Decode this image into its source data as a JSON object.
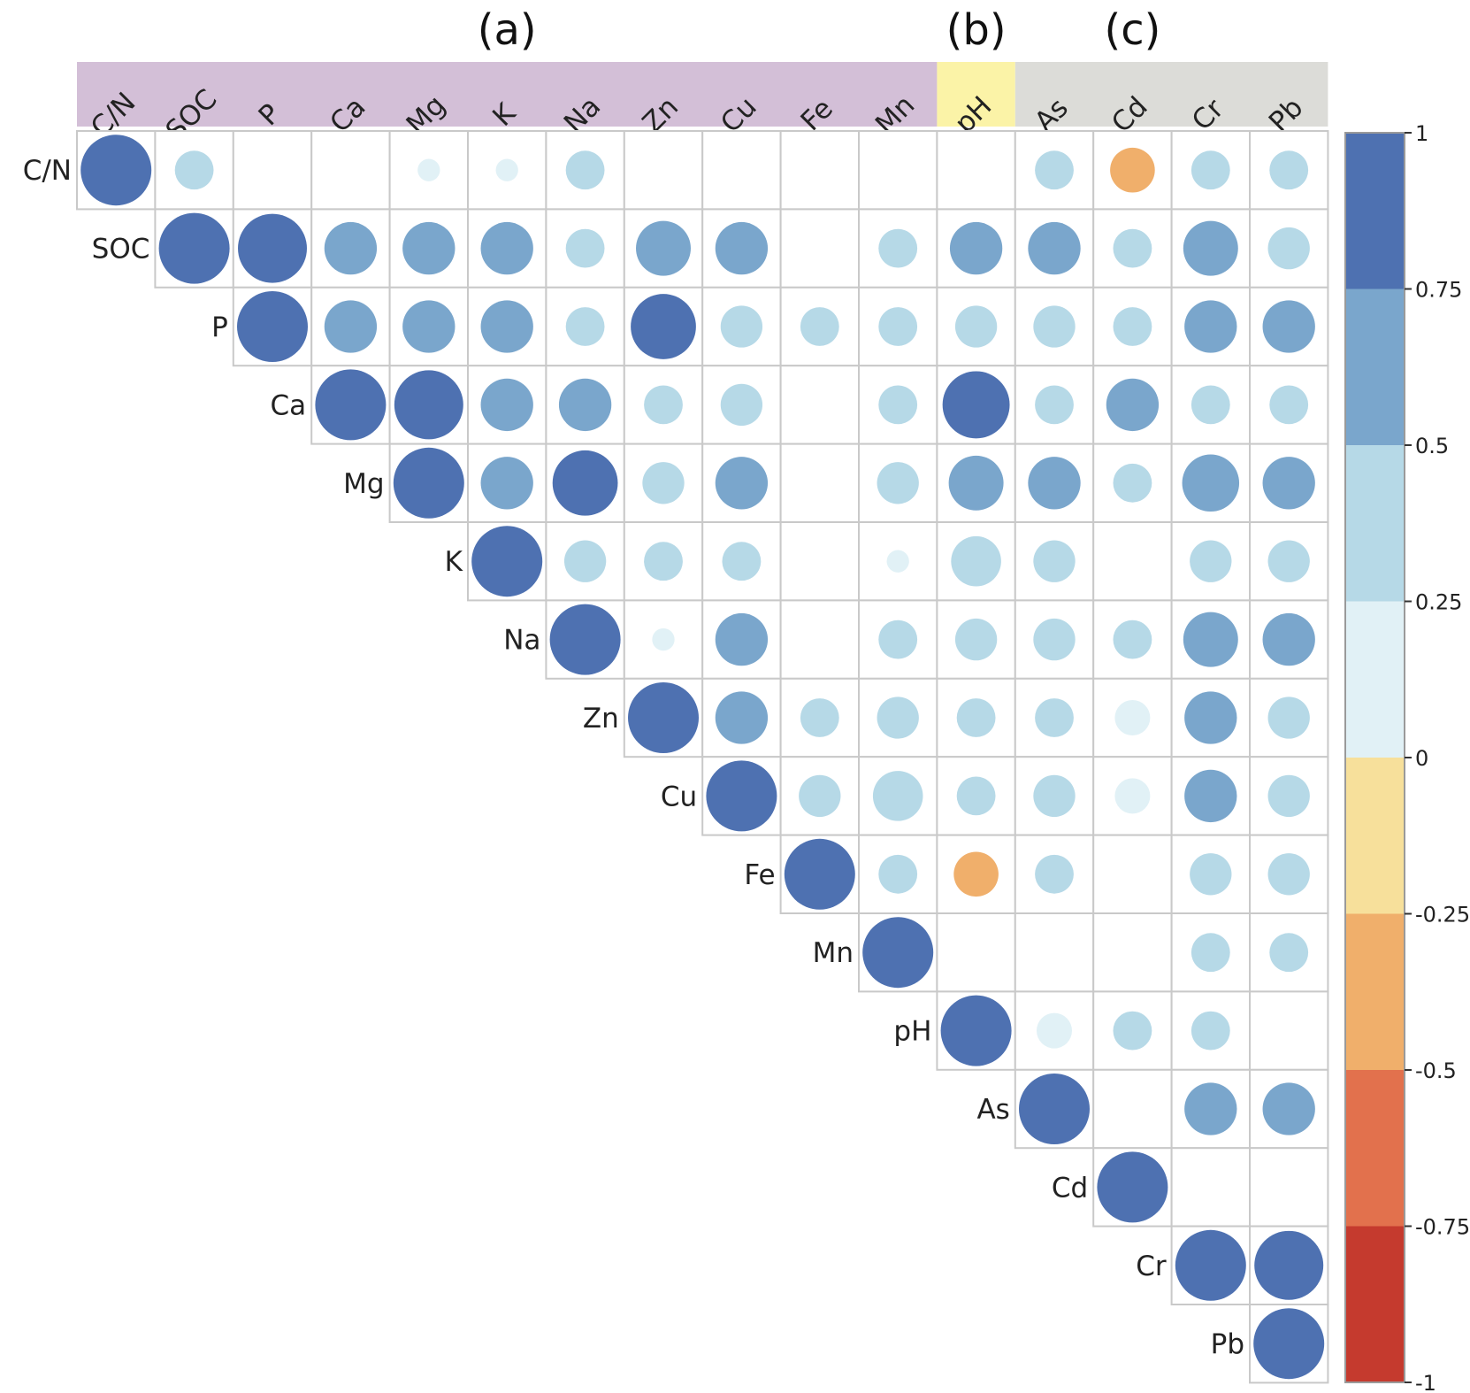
{
  "chart_data": {
    "type": "heatmap",
    "subtype": "correlation-upper-triangle-circles",
    "variables": [
      "C/N",
      "SOC",
      "P",
      "Ca",
      "Mg",
      "K",
      "Na",
      "Zn",
      "Cu",
      "Fe",
      "Mn",
      "pH",
      "As",
      "Cd",
      "Cr",
      "Pb"
    ],
    "groups": [
      {
        "label": "(a)",
        "color": "#d3bfd7",
        "members": [
          "C/N",
          "SOC",
          "P",
          "Ca",
          "Mg",
          "K",
          "Na",
          "Zn",
          "Cu",
          "Fe",
          "Mn"
        ]
      },
      {
        "label": "(b)",
        "color": "#fbf3a7",
        "members": [
          "pH"
        ]
      },
      {
        "label": "(c)",
        "color": "#dcdcd8",
        "members": [
          "As",
          "Cd",
          "Cr",
          "Pb"
        ]
      }
    ],
    "matrix": [
      [
        1,
        0.3,
        null,
        null,
        0.1,
        0.1,
        0.3,
        null,
        null,
        null,
        null,
        null,
        0.3,
        -0.4,
        0.3,
        0.3
      ],
      [
        null,
        1,
        0.95,
        0.55,
        0.55,
        0.55,
        0.3,
        0.6,
        0.55,
        null,
        0.3,
        0.55,
        0.55,
        0.3,
        0.6,
        0.35
      ],
      [
        null,
        null,
        1,
        0.55,
        0.55,
        0.55,
        0.3,
        0.85,
        0.35,
        0.3,
        0.3,
        0.35,
        0.35,
        0.3,
        0.55,
        0.55
      ],
      [
        null,
        null,
        null,
        1,
        0.95,
        0.55,
        0.55,
        0.3,
        0.35,
        null,
        0.3,
        0.9,
        0.3,
        0.55,
        0.3,
        0.3
      ],
      [
        null,
        null,
        null,
        null,
        1,
        0.55,
        0.85,
        0.35,
        0.55,
        null,
        0.35,
        0.6,
        0.55,
        0.3,
        0.65,
        0.55
      ],
      [
        null,
        null,
        null,
        null,
        null,
        1,
        0.35,
        0.3,
        0.3,
        null,
        0.1,
        0.5,
        0.35,
        null,
        0.35,
        0.35
      ],
      [
        null,
        null,
        null,
        null,
        null,
        null,
        1,
        0.1,
        0.55,
        null,
        0.3,
        0.35,
        0.35,
        0.3,
        0.6,
        0.55
      ],
      [
        null,
        null,
        null,
        null,
        null,
        null,
        null,
        1,
        0.55,
        0.3,
        0.35,
        0.3,
        0.3,
        0.25,
        0.55,
        0.35
      ],
      [
        null,
        null,
        null,
        null,
        null,
        null,
        null,
        null,
        1,
        0.35,
        0.5,
        0.3,
        0.35,
        0.25,
        0.55,
        0.35
      ],
      [
        null,
        null,
        null,
        null,
        null,
        null,
        null,
        null,
        null,
        1,
        0.3,
        -0.4,
        0.3,
        null,
        0.35,
        0.35
      ],
      [
        null,
        null,
        null,
        null,
        null,
        null,
        null,
        null,
        null,
        null,
        1,
        null,
        null,
        null,
        0.3,
        0.3
      ],
      [
        null,
        null,
        null,
        null,
        null,
        null,
        null,
        null,
        null,
        null,
        null,
        1,
        0.25,
        0.3,
        0.3,
        null
      ],
      [
        null,
        null,
        null,
        null,
        null,
        null,
        null,
        null,
        null,
        null,
        null,
        null,
        1,
        null,
        0.55,
        0.55
      ],
      [
        null,
        null,
        null,
        null,
        null,
        null,
        null,
        null,
        null,
        null,
        null,
        null,
        null,
        1,
        null,
        null
      ],
      [
        null,
        null,
        null,
        null,
        null,
        null,
        null,
        null,
        null,
        null,
        null,
        null,
        null,
        null,
        1,
        0.95
      ],
      [
        null,
        null,
        null,
        null,
        null,
        null,
        null,
        null,
        null,
        null,
        null,
        null,
        null,
        null,
        null,
        1
      ]
    ],
    "colorbar": {
      "range": [
        -1,
        1
      ],
      "ticks": [
        "1",
        "0.75",
        "0.5",
        "0.25",
        "0",
        "-0.25",
        "-0.5",
        "-0.75",
        "-1"
      ],
      "bins": [
        {
          "from": 0.75,
          "to": 1,
          "color": "#4e71b1"
        },
        {
          "from": 0.5,
          "to": 0.75,
          "color": "#7aa6cc"
        },
        {
          "from": 0.25,
          "to": 0.5,
          "color": "#b6d9e7"
        },
        {
          "from": 0,
          "to": 0.25,
          "color": "#e1f1f6"
        },
        {
          "from": -0.25,
          "to": 0,
          "color": "#f7e09b"
        },
        {
          "from": -0.5,
          "to": -0.25,
          "color": "#f0af6b"
        },
        {
          "from": -0.75,
          "to": -0.5,
          "color": "#e2714d"
        },
        {
          "from": -1,
          "to": -0.75,
          "color": "#c53a2e"
        }
      ]
    },
    "legend_position": "right",
    "circle_size_encodes": "absolute correlation"
  }
}
